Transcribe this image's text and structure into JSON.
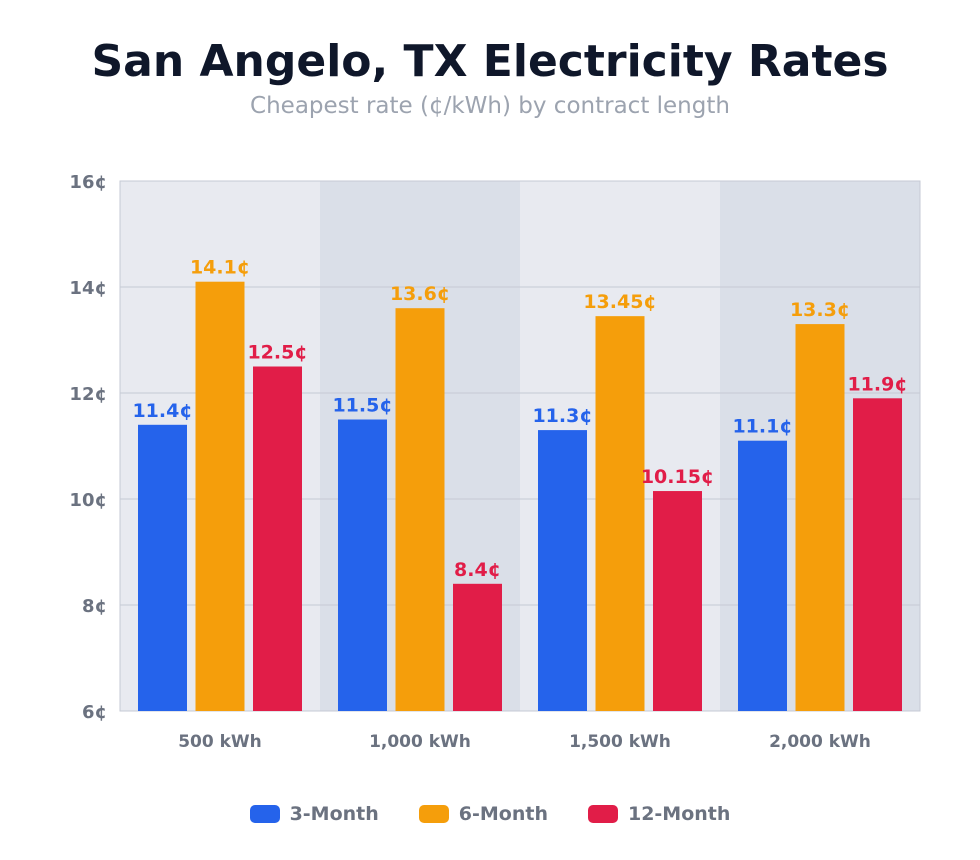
{
  "chart_data": {
    "type": "bar",
    "title": "San Angelo, TX Electricity Rates",
    "subtitle": "Cheapest rate (¢/kWh) by contract length",
    "xlabel": "",
    "ylabel": "",
    "categories": [
      "500 kWh",
      "1,000 kWh",
      "1,500 kWh",
      "2,000 kWh"
    ],
    "ylim": [
      6,
      16
    ],
    "yticks": [
      6,
      8,
      10,
      12,
      14,
      16
    ],
    "ytick_labels": [
      "6¢",
      "8¢",
      "10¢",
      "12¢",
      "14¢",
      "16¢"
    ],
    "grid": true,
    "legend_position": "bottom",
    "series": [
      {
        "name": "3-Month",
        "color": "#2563eb",
        "values": [
          11.4,
          11.5,
          11.3,
          11.1
        ],
        "labels": [
          "11.4¢",
          "11.5¢",
          "11.3¢",
          "11.1¢"
        ]
      },
      {
        "name": "6-Month",
        "color": "#f59e0b",
        "values": [
          14.1,
          13.6,
          13.45,
          13.3
        ],
        "labels": [
          "14.1¢",
          "13.6¢",
          "13.45¢",
          "13.3¢"
        ]
      },
      {
        "name": "12-Month",
        "color": "#e11d48",
        "values": [
          12.5,
          8.4,
          10.15,
          11.9
        ],
        "labels": [
          "12.5¢",
          "8.4¢",
          "10.15¢",
          "11.9¢"
        ]
      }
    ]
  }
}
